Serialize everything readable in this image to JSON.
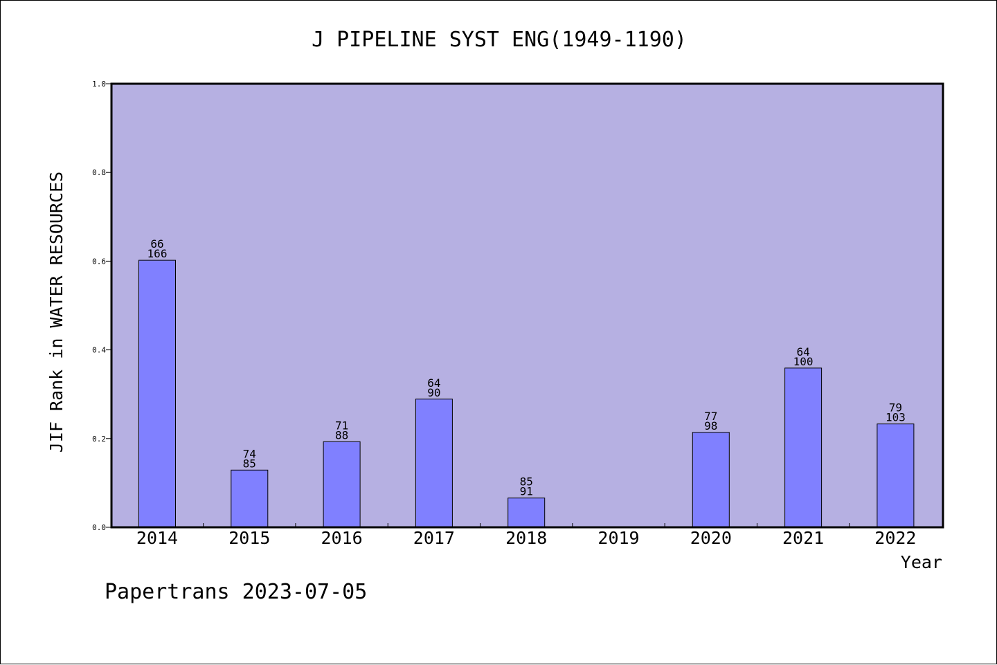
{
  "chart_data": {
    "type": "bar",
    "title": "J PIPELINE SYST ENG(1949-1190)",
    "xlabel": "Year",
    "ylabel": "JIF Rank in WATER RESOURCES",
    "ylim": [
      0,
      1.0
    ],
    "yticks": [
      "0.0",
      "0.2",
      "0.4",
      "0.6",
      "0.8",
      "1.0"
    ],
    "categories": [
      "2014",
      "2015",
      "2016",
      "2017",
      "2018",
      "2019",
      "2020",
      "2021",
      "2022"
    ],
    "values": [
      0.602,
      0.129,
      0.193,
      0.289,
      0.066,
      0,
      0.214,
      0.359,
      0.233
    ],
    "rank_labels": [
      [
        "66",
        "166"
      ],
      [
        "74",
        "85"
      ],
      [
        "71",
        "88"
      ],
      [
        "64",
        "90"
      ],
      [
        "85",
        "91"
      ],
      null,
      [
        "77",
        "98"
      ],
      [
        "64",
        "100"
      ],
      [
        "79",
        "103"
      ]
    ],
    "grid": false,
    "colors": {
      "plot_background": "#b6b0e2",
      "bar_fill": "#8080ff",
      "bar_stroke": "#000000"
    }
  },
  "footer": {
    "text": "Papertrans 2023-07-05"
  }
}
